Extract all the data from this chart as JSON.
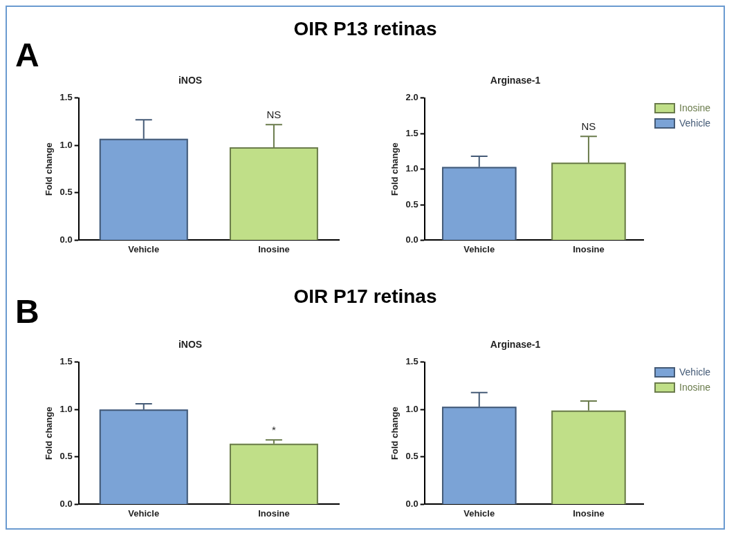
{
  "chart_data": [
    {
      "type": "bar",
      "title": "iNOS",
      "ylabel": "Fold change",
      "categories": [
        "Vehicle",
        "Inosine"
      ],
      "annotations": [
        "A",
        "OIR P13 retinas",
        {
          "text": "NS",
          "x": "Inosine",
          "y": 1.22
        }
      ],
      "ylim": [
        0,
        1.5
      ],
      "yticks": [
        {
          "value": 0,
          "label": "0.0"
        },
        {
          "value": 0.5,
          "label": "0.5"
        },
        {
          "value": 1,
          "label": "1.0"
        },
        {
          "value": 1.5,
          "label": "1.5"
        }
      ],
      "grid": false,
      "legend": false,
      "series": [
        {
          "color": "#7ba3d6",
          "values": [
            1.07,
            null
          ],
          "errors": [
            [
              1.07,
              1.27
            ],
            null
          ]
        },
        {
          "color": "#c0df88",
          "values": [
            null,
            0.98
          ],
          "errors": [
            null,
            [
              0.98,
              1.22
            ]
          ]
        }
      ]
    },
    {
      "type": "bar",
      "title": "Arginase-1",
      "ylabel": "Fold change",
      "categories": [
        "Vehicle",
        "Inosine"
      ],
      "annotations": [
        {
          "text": "NS",
          "x": "Inosine",
          "y": 1.46
        }
      ],
      "ylim": [
        0,
        2.0
      ],
      "yticks": [
        {
          "value": 0,
          "label": "0.0"
        },
        {
          "value": 0.5,
          "label": "0.5"
        },
        {
          "value": 1,
          "label": "1.0"
        },
        {
          "value": 1.5,
          "label": "1.5"
        },
        {
          "value": 2,
          "label": "2.0"
        }
      ],
      "grid": false,
      "legend": "right",
      "series": [
        {
          "name": "Inosine",
          "color": "#c0df88",
          "values": [
            null,
            1.09
          ],
          "errors": [
            null,
            [
              1.09,
              1.46
            ]
          ]
        },
        {
          "name": "Vehicle",
          "color": "#7ba3d6",
          "values": [
            1.03,
            null
          ],
          "errors": [
            [
              1.03,
              1.18
            ],
            null
          ]
        }
      ]
    },
    {
      "type": "bar",
      "title": "iNOS",
      "ylabel": "Fold change",
      "categories": [
        "Vehicle",
        "Inosine"
      ],
      "annotations": [
        "B",
        "OIR P17 retinas",
        {
          "text": "*",
          "x": "Inosine",
          "y": 0.68
        }
      ],
      "ylim": [
        0,
        1.5
      ],
      "yticks": [
        {
          "value": 0,
          "label": "0.0"
        },
        {
          "value": 0.5,
          "label": "0.5"
        },
        {
          "value": 1,
          "label": "1.0"
        },
        {
          "value": 1.5,
          "label": "1.5"
        }
      ],
      "grid": false,
      "legend": false,
      "series": [
        {
          "color": "#7ba3d6",
          "values": [
            1.0,
            null
          ],
          "errors": [
            [
              1.0,
              1.06
            ],
            null
          ]
        },
        {
          "color": "#c0df88",
          "values": [
            null,
            0.64
          ],
          "errors": [
            null,
            [
              0.64,
              0.68
            ]
          ]
        }
      ]
    },
    {
      "type": "bar",
      "title": "Arginase-1",
      "ylabel": "Fold change",
      "categories": [
        "Vehicle",
        "Inosine"
      ],
      "ylim": [
        0,
        1.5
      ],
      "yticks": [
        {
          "value": 0,
          "label": "0.0"
        },
        {
          "value": 0.5,
          "label": "0.5"
        },
        {
          "value": 1,
          "label": "1.0"
        },
        {
          "value": 1.5,
          "label": "1.5"
        }
      ],
      "grid": false,
      "legend": "right",
      "series": [
        {
          "name": "Vehicle",
          "color": "#7ba3d6",
          "values": [
            1.03,
            null
          ],
          "errors": [
            [
              1.03,
              1.18
            ],
            null
          ]
        },
        {
          "name": "Inosine",
          "color": "#c0df88",
          "values": [
            null,
            0.99
          ],
          "errors": [
            null,
            [
              0.99,
              1.09
            ]
          ]
        }
      ]
    }
  ]
}
